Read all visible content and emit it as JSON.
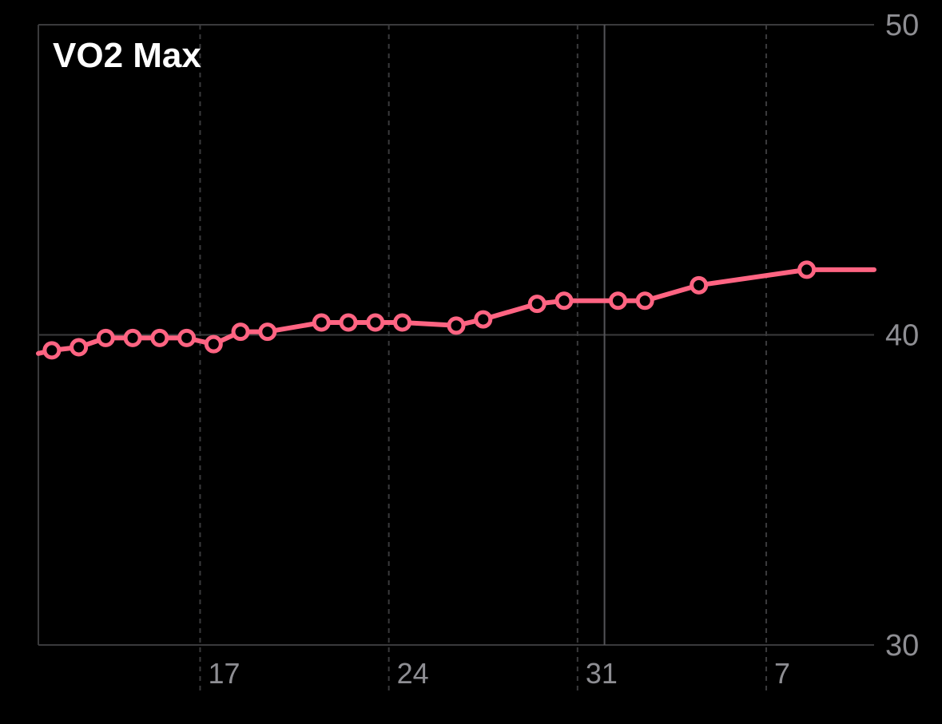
{
  "colors": {
    "background": "#000000",
    "series": "#ff6482",
    "grid": "#3a3a3c",
    "axis_text": "#8e8e93",
    "title": "#ffffff"
  },
  "chart_data": {
    "type": "line",
    "title": "VO2 Max",
    "xlabel": "",
    "ylabel": "",
    "ylim": [
      30,
      50
    ],
    "yticks": [
      {
        "value": 50,
        "label": "50"
      },
      {
        "value": 40,
        "label": "40"
      },
      {
        "value": 30,
        "label": "30"
      }
    ],
    "xlim": [
      10.0,
      41.0
    ],
    "xticks": [
      {
        "value": 16,
        "label": "17"
      },
      {
        "value": 23,
        "label": "24"
      },
      {
        "value": 30,
        "label": "31"
      },
      {
        "value": 37,
        "label": "7"
      }
    ],
    "x_solid_gridline": 31,
    "grid": true,
    "marker": "open-circle",
    "series": [
      {
        "name": "",
        "points": [
          {
            "x": 10.0,
            "y": 39.4,
            "marker": false
          },
          {
            "x": 10.5,
            "y": 39.5
          },
          {
            "x": 11.5,
            "y": 39.6
          },
          {
            "x": 12.5,
            "y": 39.9
          },
          {
            "x": 13.5,
            "y": 39.9
          },
          {
            "x": 14.5,
            "y": 39.9
          },
          {
            "x": 15.5,
            "y": 39.9
          },
          {
            "x": 16.5,
            "y": 39.7
          },
          {
            "x": 17.5,
            "y": 40.1
          },
          {
            "x": 18.5,
            "y": 40.1
          },
          {
            "x": 20.5,
            "y": 40.4
          },
          {
            "x": 21.5,
            "y": 40.4
          },
          {
            "x": 22.5,
            "y": 40.4
          },
          {
            "x": 23.5,
            "y": 40.4
          },
          {
            "x": 25.5,
            "y": 40.3
          },
          {
            "x": 26.5,
            "y": 40.5
          },
          {
            "x": 28.5,
            "y": 41.0
          },
          {
            "x": 29.5,
            "y": 41.1
          },
          {
            "x": 31.5,
            "y": 41.1
          },
          {
            "x": 32.5,
            "y": 41.1
          },
          {
            "x": 34.5,
            "y": 41.6
          },
          {
            "x": 38.5,
            "y": 42.1
          },
          {
            "x": 41.0,
            "y": 42.1,
            "marker": false
          }
        ]
      }
    ]
  }
}
